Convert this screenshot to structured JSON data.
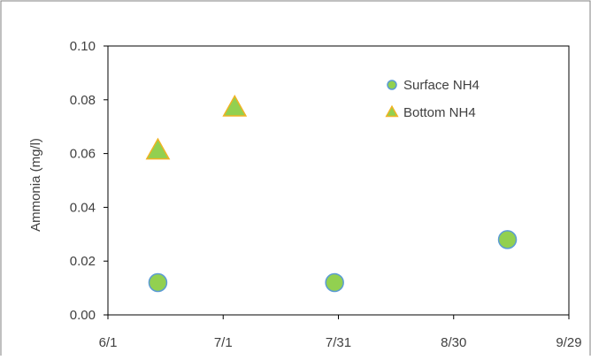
{
  "chart_data": {
    "type": "scatter",
    "title": "",
    "xlabel": "",
    "ylabel": "Ammonia  (mg/l)",
    "x_axis": {
      "type": "date",
      "range": [
        "6/1",
        "9/29"
      ],
      "ticks": [
        "6/1",
        "7/1",
        "7/31",
        "8/30",
        "9/29"
      ]
    },
    "y_axis": {
      "range": [
        0,
        0.1
      ],
      "ticks": [
        "0.00",
        "0.02",
        "0.04",
        "0.06",
        "0.08",
        "0.10"
      ]
    },
    "grid": false,
    "legend_position": "top-right",
    "series": [
      {
        "name": "Surface NH4",
        "marker": "circle",
        "fill_color": "#92D050",
        "edge_color": "#5B9BD5",
        "points": [
          {
            "x": "6/14",
            "y": 0.012
          },
          {
            "x": "7/30",
            "y": 0.012
          },
          {
            "x": "9/13",
            "y": 0.028
          }
        ]
      },
      {
        "name": "Bottom NH4",
        "marker": "triangle",
        "fill_color": "#92D050",
        "edge_color": "#F0B323",
        "points": [
          {
            "x": "6/14",
            "y": 0.061
          },
          {
            "x": "7/4",
            "y": 0.077
          }
        ]
      }
    ]
  }
}
